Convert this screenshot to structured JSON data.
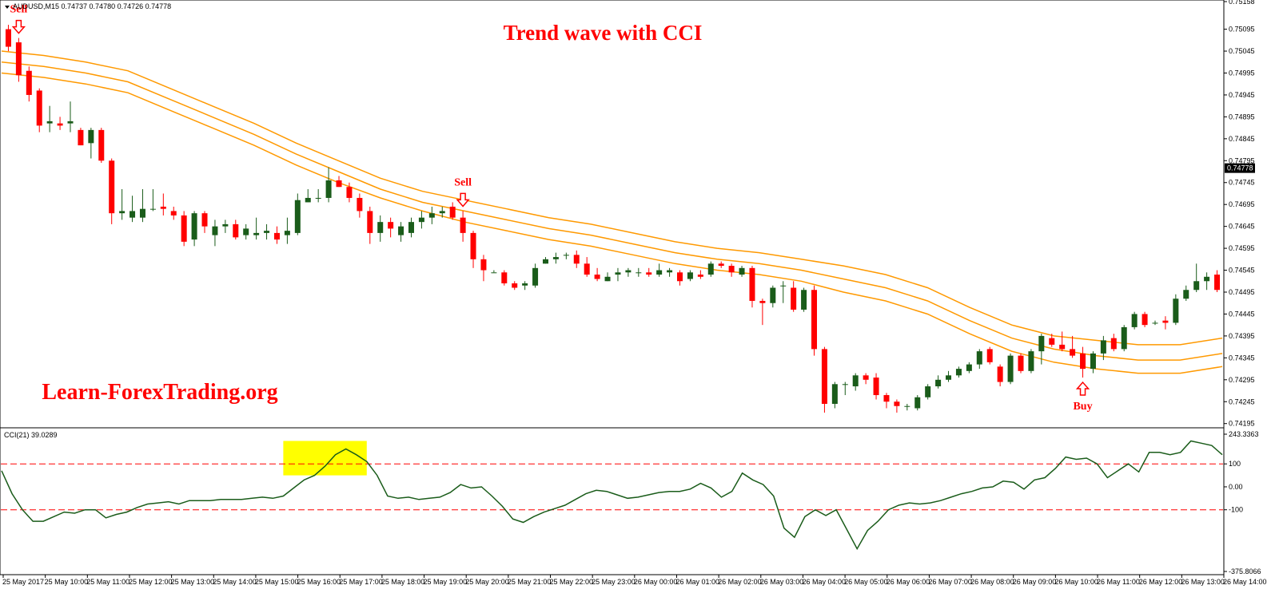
{
  "header": {
    "symbol_line": "AUDUSD,M15  0.74737 0.74780 0.74726 0.74778",
    "title": "Trend wave with CCI",
    "watermark": "Learn-ForexTrading.org"
  },
  "indicator": {
    "label": "CCI(21) 39.0289"
  },
  "colors": {
    "bull": "#1a5c1a",
    "bear": "#ff0000",
    "ma": "#ff9900",
    "cci_line": "#1a5c1a",
    "level_line": "#ff0000",
    "highlight": "#ffff00",
    "signal": "#ff0000"
  },
  "icons": {
    "sell_signal": "down-arrow-outline-icon",
    "buy_signal": "up-arrow-outline-icon"
  },
  "chart_data": [
    {
      "type": "candlestick",
      "title": "Trend wave with CCI",
      "symbol": "AUDUSD",
      "timeframe": "M15",
      "ohlc_readout": {
        "open": "0.74737",
        "high": "0.74780",
        "low": "0.74726",
        "close": "0.74778"
      },
      "current_price": "0.74778",
      "ylim": [
        0.74189,
        0.75158
      ],
      "y_ticks": [
        "0.75158",
        "0.75095",
        "0.75045",
        "0.74995",
        "0.74945",
        "0.74895",
        "0.74845",
        "0.74795",
        "0.74745",
        "0.74695",
        "0.74645",
        "0.74595",
        "0.74545",
        "0.74495",
        "0.74445",
        "0.74395",
        "0.74345",
        "0.74295",
        "0.74245",
        "0.74195"
      ],
      "x_ticks": [
        "25 May 2017",
        "25 May 10:00",
        "25 May 11:00",
        "25 May 12:00",
        "25 May 13:00",
        "25 May 14:00",
        "25 May 15:00",
        "25 May 16:00",
        "25 May 17:00",
        "25 May 18:00",
        "25 May 19:00",
        "25 May 20:00",
        "25 May 21:00",
        "25 May 22:00",
        "25 May 23:00",
        "26 May 00:00",
        "26 May 01:00",
        "26 May 02:00",
        "26 May 03:00",
        "26 May 04:00",
        "26 May 05:00",
        "26 May 06:00",
        "26 May 07:00",
        "26 May 08:00",
        "26 May 09:00",
        "26 May 10:00",
        "26 May 11:00",
        "26 May 12:00",
        "26 May 13:00",
        "26 May 14:00"
      ],
      "candles": [
        {
          "o": 0.75095,
          "h": 0.75105,
          "l": 0.75045,
          "c": 0.75055
        },
        {
          "o": 0.75065,
          "h": 0.75075,
          "l": 0.74975,
          "c": 0.7499
        },
        {
          "o": 0.75,
          "h": 0.7501,
          "l": 0.7493,
          "c": 0.74945
        },
        {
          "o": 0.74955,
          "h": 0.7496,
          "l": 0.7486,
          "c": 0.74875
        },
        {
          "o": 0.7488,
          "h": 0.7492,
          "l": 0.7486,
          "c": 0.74885
        },
        {
          "o": 0.7488,
          "h": 0.74895,
          "l": 0.74865,
          "c": 0.74875
        },
        {
          "o": 0.7488,
          "h": 0.7493,
          "l": 0.7486,
          "c": 0.74885
        },
        {
          "o": 0.74865,
          "h": 0.7487,
          "l": 0.7483,
          "c": 0.7483
        },
        {
          "o": 0.74835,
          "h": 0.7487,
          "l": 0.748,
          "c": 0.74865
        },
        {
          "o": 0.74865,
          "h": 0.7487,
          "l": 0.7479,
          "c": 0.74795
        },
        {
          "o": 0.74795,
          "h": 0.748,
          "l": 0.7465,
          "c": 0.74675
        },
        {
          "o": 0.74675,
          "h": 0.7473,
          "l": 0.7466,
          "c": 0.7468
        },
        {
          "o": 0.74665,
          "h": 0.74715,
          "l": 0.74655,
          "c": 0.7468
        },
        {
          "o": 0.74665,
          "h": 0.7473,
          "l": 0.74655,
          "c": 0.74685
        },
        {
          "o": 0.74685,
          "h": 0.7473,
          "l": 0.7468,
          "c": 0.74685
        },
        {
          "o": 0.7469,
          "h": 0.7472,
          "l": 0.7467,
          "c": 0.74685
        },
        {
          "o": 0.7468,
          "h": 0.7469,
          "l": 0.7466,
          "c": 0.7467
        },
        {
          "o": 0.7467,
          "h": 0.7468,
          "l": 0.746,
          "c": 0.7461
        },
        {
          "o": 0.74615,
          "h": 0.7468,
          "l": 0.746,
          "c": 0.74675
        },
        {
          "o": 0.74675,
          "h": 0.7468,
          "l": 0.7463,
          "c": 0.74645
        },
        {
          "o": 0.74625,
          "h": 0.7466,
          "l": 0.746,
          "c": 0.74645
        },
        {
          "o": 0.74645,
          "h": 0.7466,
          "l": 0.7463,
          "c": 0.7465
        },
        {
          "o": 0.7465,
          "h": 0.7466,
          "l": 0.74615,
          "c": 0.7462
        },
        {
          "o": 0.74625,
          "h": 0.7465,
          "l": 0.74615,
          "c": 0.7464
        },
        {
          "o": 0.74625,
          "h": 0.74665,
          "l": 0.74615,
          "c": 0.7463
        },
        {
          "o": 0.7463,
          "h": 0.7465,
          "l": 0.74615,
          "c": 0.74635
        },
        {
          "o": 0.7463,
          "h": 0.74645,
          "l": 0.74605,
          "c": 0.74615
        },
        {
          "o": 0.74625,
          "h": 0.74665,
          "l": 0.74605,
          "c": 0.74635
        },
        {
          "o": 0.7463,
          "h": 0.7472,
          "l": 0.74625,
          "c": 0.74705
        },
        {
          "o": 0.747,
          "h": 0.7473,
          "l": 0.747,
          "c": 0.7471
        },
        {
          "o": 0.7471,
          "h": 0.7473,
          "l": 0.747,
          "c": 0.7471
        },
        {
          "o": 0.7471,
          "h": 0.7478,
          "l": 0.747,
          "c": 0.7475
        },
        {
          "o": 0.7475,
          "h": 0.7476,
          "l": 0.74735,
          "c": 0.74735
        },
        {
          "o": 0.74735,
          "h": 0.74745,
          "l": 0.747,
          "c": 0.7471
        },
        {
          "o": 0.7471,
          "h": 0.7472,
          "l": 0.74665,
          "c": 0.7468
        },
        {
          "o": 0.7468,
          "h": 0.7469,
          "l": 0.74605,
          "c": 0.7463
        },
        {
          "o": 0.7463,
          "h": 0.7467,
          "l": 0.7461,
          "c": 0.74655
        },
        {
          "o": 0.74655,
          "h": 0.74665,
          "l": 0.7462,
          "c": 0.7464
        },
        {
          "o": 0.74625,
          "h": 0.74655,
          "l": 0.7461,
          "c": 0.74645
        },
        {
          "o": 0.7463,
          "h": 0.74665,
          "l": 0.7462,
          "c": 0.74655
        },
        {
          "o": 0.74655,
          "h": 0.7468,
          "l": 0.7464,
          "c": 0.74665
        },
        {
          "o": 0.74665,
          "h": 0.7469,
          "l": 0.7465,
          "c": 0.74675
        },
        {
          "o": 0.74675,
          "h": 0.7469,
          "l": 0.74665,
          "c": 0.7468
        },
        {
          "o": 0.7469,
          "h": 0.747,
          "l": 0.7466,
          "c": 0.74665
        },
        {
          "o": 0.74665,
          "h": 0.7468,
          "l": 0.7461,
          "c": 0.7463
        },
        {
          "o": 0.7463,
          "h": 0.74635,
          "l": 0.7455,
          "c": 0.7457
        },
        {
          "o": 0.7457,
          "h": 0.7458,
          "l": 0.7452,
          "c": 0.74545
        },
        {
          "o": 0.7454,
          "h": 0.74545,
          "l": 0.7454,
          "c": 0.7454
        },
        {
          "o": 0.7454,
          "h": 0.74545,
          "l": 0.7451,
          "c": 0.74515
        },
        {
          "o": 0.74515,
          "h": 0.7452,
          "l": 0.745,
          "c": 0.74505
        },
        {
          "o": 0.7451,
          "h": 0.7452,
          "l": 0.745,
          "c": 0.74515
        },
        {
          "o": 0.7451,
          "h": 0.7456,
          "l": 0.74505,
          "c": 0.7455
        },
        {
          "o": 0.7456,
          "h": 0.74575,
          "l": 0.7456,
          "c": 0.7457
        },
        {
          "o": 0.7457,
          "h": 0.74585,
          "l": 0.7456,
          "c": 0.74575
        },
        {
          "o": 0.7458,
          "h": 0.74585,
          "l": 0.7457,
          "c": 0.7458
        },
        {
          "o": 0.7458,
          "h": 0.7459,
          "l": 0.7455,
          "c": 0.7456
        },
        {
          "o": 0.7456,
          "h": 0.74575,
          "l": 0.7453,
          "c": 0.74535
        },
        {
          "o": 0.74535,
          "h": 0.7455,
          "l": 0.7452,
          "c": 0.74525
        },
        {
          "o": 0.7452,
          "h": 0.7454,
          "l": 0.7452,
          "c": 0.7453
        },
        {
          "o": 0.74535,
          "h": 0.7455,
          "l": 0.7452,
          "c": 0.7454
        },
        {
          "o": 0.7454,
          "h": 0.7455,
          "l": 0.7453,
          "c": 0.74545
        },
        {
          "o": 0.7454,
          "h": 0.7455,
          "l": 0.7453,
          "c": 0.7454
        },
        {
          "o": 0.7454,
          "h": 0.7455,
          "l": 0.7453,
          "c": 0.74535
        },
        {
          "o": 0.74535,
          "h": 0.7456,
          "l": 0.7453,
          "c": 0.74545
        },
        {
          "o": 0.7454,
          "h": 0.7455,
          "l": 0.7453,
          "c": 0.74545
        },
        {
          "o": 0.7454,
          "h": 0.74545,
          "l": 0.7451,
          "c": 0.7452
        },
        {
          "o": 0.74525,
          "h": 0.74545,
          "l": 0.7452,
          "c": 0.7454
        },
        {
          "o": 0.74535,
          "h": 0.74545,
          "l": 0.74525,
          "c": 0.7453
        },
        {
          "o": 0.74535,
          "h": 0.74565,
          "l": 0.7453,
          "c": 0.7456
        },
        {
          "o": 0.7456,
          "h": 0.74565,
          "l": 0.7455,
          "c": 0.74555
        },
        {
          "o": 0.74555,
          "h": 0.7456,
          "l": 0.7453,
          "c": 0.7454
        },
        {
          "o": 0.74535,
          "h": 0.74555,
          "l": 0.7453,
          "c": 0.7455
        },
        {
          "o": 0.7455,
          "h": 0.74555,
          "l": 0.7446,
          "c": 0.74475
        },
        {
          "o": 0.74475,
          "h": 0.7448,
          "l": 0.7442,
          "c": 0.7447
        },
        {
          "o": 0.7447,
          "h": 0.7451,
          "l": 0.7446,
          "c": 0.74505
        },
        {
          "o": 0.7451,
          "h": 0.7452,
          "l": 0.7447,
          "c": 0.7451
        },
        {
          "o": 0.74505,
          "h": 0.7452,
          "l": 0.7445,
          "c": 0.74455
        },
        {
          "o": 0.74455,
          "h": 0.74505,
          "l": 0.7445,
          "c": 0.745
        },
        {
          "o": 0.745,
          "h": 0.7451,
          "l": 0.7435,
          "c": 0.74365
        },
        {
          "o": 0.74365,
          "h": 0.7437,
          "l": 0.7422,
          "c": 0.7424
        },
        {
          "o": 0.7424,
          "h": 0.7429,
          "l": 0.7423,
          "c": 0.74285
        },
        {
          "o": 0.74285,
          "h": 0.7429,
          "l": 0.7426,
          "c": 0.74285
        },
        {
          "o": 0.7428,
          "h": 0.7431,
          "l": 0.7427,
          "c": 0.74305
        },
        {
          "o": 0.74305,
          "h": 0.7431,
          "l": 0.74285,
          "c": 0.74295
        },
        {
          "o": 0.743,
          "h": 0.7431,
          "l": 0.7425,
          "c": 0.7426
        },
        {
          "o": 0.7426,
          "h": 0.74265,
          "l": 0.7423,
          "c": 0.74245
        },
        {
          "o": 0.74245,
          "h": 0.7425,
          "l": 0.7422,
          "c": 0.74235
        },
        {
          "o": 0.74235,
          "h": 0.7424,
          "l": 0.74225,
          "c": 0.74235
        },
        {
          "o": 0.7423,
          "h": 0.7426,
          "l": 0.74225,
          "c": 0.74255
        },
        {
          "o": 0.74255,
          "h": 0.74285,
          "l": 0.7425,
          "c": 0.7428
        },
        {
          "o": 0.7428,
          "h": 0.74305,
          "l": 0.74275,
          "c": 0.74295
        },
        {
          "o": 0.74295,
          "h": 0.74315,
          "l": 0.7429,
          "c": 0.74305
        },
        {
          "o": 0.74305,
          "h": 0.74325,
          "l": 0.743,
          "c": 0.7432
        },
        {
          "o": 0.74315,
          "h": 0.74335,
          "l": 0.7431,
          "c": 0.7433
        },
        {
          "o": 0.7433,
          "h": 0.74365,
          "l": 0.7432,
          "c": 0.7436
        },
        {
          "o": 0.74365,
          "h": 0.7437,
          "l": 0.7433,
          "c": 0.74335
        },
        {
          "o": 0.74325,
          "h": 0.7433,
          "l": 0.7428,
          "c": 0.7429
        },
        {
          "o": 0.7429,
          "h": 0.74355,
          "l": 0.74285,
          "c": 0.7435
        },
        {
          "o": 0.7435,
          "h": 0.74355,
          "l": 0.7431,
          "c": 0.74315
        },
        {
          "o": 0.74315,
          "h": 0.74365,
          "l": 0.7431,
          "c": 0.7436
        },
        {
          "o": 0.7436,
          "h": 0.744,
          "l": 0.7433,
          "c": 0.74395
        },
        {
          "o": 0.7439,
          "h": 0.744,
          "l": 0.7437,
          "c": 0.74375
        },
        {
          "o": 0.74375,
          "h": 0.74405,
          "l": 0.7436,
          "c": 0.74365
        },
        {
          "o": 0.74365,
          "h": 0.74395,
          "l": 0.74345,
          "c": 0.7435
        },
        {
          "o": 0.74355,
          "h": 0.7437,
          "l": 0.743,
          "c": 0.7432
        },
        {
          "o": 0.7432,
          "h": 0.7436,
          "l": 0.7431,
          "c": 0.74355
        },
        {
          "o": 0.74355,
          "h": 0.74395,
          "l": 0.7434,
          "c": 0.74385
        },
        {
          "o": 0.7439,
          "h": 0.744,
          "l": 0.7436,
          "c": 0.74365
        },
        {
          "o": 0.74365,
          "h": 0.7442,
          "l": 0.7436,
          "c": 0.74415
        },
        {
          "o": 0.74415,
          "h": 0.7445,
          "l": 0.7441,
          "c": 0.74445
        },
        {
          "o": 0.74445,
          "h": 0.7445,
          "l": 0.74415,
          "c": 0.7442
        },
        {
          "o": 0.74425,
          "h": 0.7443,
          "l": 0.7442,
          "c": 0.74425
        },
        {
          "o": 0.7443,
          "h": 0.7444,
          "l": 0.7441,
          "c": 0.74425
        },
        {
          "o": 0.74425,
          "h": 0.7449,
          "l": 0.7442,
          "c": 0.7448
        },
        {
          "o": 0.7448,
          "h": 0.7451,
          "l": 0.74475,
          "c": 0.745
        },
        {
          "o": 0.745,
          "h": 0.7456,
          "l": 0.74495,
          "c": 0.7452
        },
        {
          "o": 0.7452,
          "h": 0.7454,
          "l": 0.745,
          "c": 0.7453
        },
        {
          "o": 0.74535,
          "h": 0.74545,
          "l": 0.74495,
          "c": 0.745
        }
      ],
      "moving_averages": [
        {
          "name": "",
          "points": [
            0.75045,
            0.75035,
            0.7502,
            0.75,
            0.7496,
            0.7492,
            0.7488,
            0.74835,
            0.74795,
            0.74755,
            0.74725,
            0.74705,
            0.74685,
            0.74665,
            0.7465,
            0.7463,
            0.7461,
            0.74595,
            0.74585,
            0.7457,
            0.74555,
            0.74535,
            0.74505,
            0.7446,
            0.7442,
            0.74395,
            0.74385,
            0.74375,
            0.74375,
            0.7439
          ]
        },
        {
          "name": "",
          "points": [
            0.7502,
            0.7501,
            0.74995,
            0.74975,
            0.74935,
            0.74895,
            0.74855,
            0.7481,
            0.7477,
            0.7473,
            0.747,
            0.7468,
            0.7466,
            0.7464,
            0.74625,
            0.74605,
            0.74585,
            0.7457,
            0.7456,
            0.74545,
            0.74525,
            0.74505,
            0.74475,
            0.7443,
            0.7439,
            0.74365,
            0.7435,
            0.7434,
            0.7434,
            0.74355
          ]
        },
        {
          "name": "",
          "points": [
            0.74995,
            0.74985,
            0.7497,
            0.7495,
            0.7491,
            0.7487,
            0.7483,
            0.74785,
            0.74745,
            0.7471,
            0.7468,
            0.74655,
            0.74635,
            0.74615,
            0.746,
            0.7458,
            0.7456,
            0.74545,
            0.74535,
            0.7452,
            0.74495,
            0.74475,
            0.74445,
            0.744,
            0.7436,
            0.74335,
            0.7432,
            0.7431,
            0.7431,
            0.74325
          ]
        }
      ],
      "annotations": [
        {
          "label": "Sell",
          "direction": "down",
          "candle_index": 1
        },
        {
          "label": "Sell",
          "direction": "down",
          "candle_index": 44
        },
        {
          "label": "Buy",
          "direction": "up",
          "candle_index": 104
        }
      ]
    },
    {
      "type": "line",
      "title": "CCI(21) 39.0289",
      "ylim": [
        -375.8066,
        243.3363
      ],
      "y_ticks": [
        "243.3363",
        "100",
        "0.00",
        "-100",
        "-375.8066"
      ],
      "levels": [
        100,
        -100
      ],
      "highlight_range": {
        "from_point": 27,
        "to_point": 35
      },
      "values": [
        70,
        -30,
        -100,
        -150,
        -150,
        -130,
        -110,
        -115,
        -100,
        -100,
        -135,
        -120,
        -110,
        -90,
        -75,
        -70,
        -65,
        -75,
        -60,
        -60,
        -60,
        -55,
        -55,
        -55,
        -50,
        -45,
        -50,
        -40,
        -5,
        30,
        50,
        90,
        140,
        165,
        140,
        110,
        50,
        -40,
        -50,
        -45,
        -55,
        -50,
        -45,
        -25,
        10,
        -5,
        0,
        -40,
        -85,
        -140,
        -155,
        -130,
        -110,
        -95,
        -80,
        -55,
        -30,
        -15,
        -20,
        -35,
        -50,
        -45,
        -35,
        -25,
        -20,
        -20,
        -10,
        15,
        -5,
        -45,
        -20,
        60,
        30,
        10,
        -40,
        -180,
        -220,
        -130,
        -100,
        -125,
        -100,
        -185,
        -270,
        -190,
        -150,
        -100,
        -80,
        -70,
        -75,
        -70,
        -60,
        -45,
        -30,
        -20,
        -5,
        0,
        25,
        20,
        -10,
        30,
        40,
        80,
        130,
        120,
        125,
        100,
        40,
        70,
        100,
        65,
        150,
        150,
        140,
        150,
        200,
        190,
        180,
        140
      ]
    }
  ]
}
